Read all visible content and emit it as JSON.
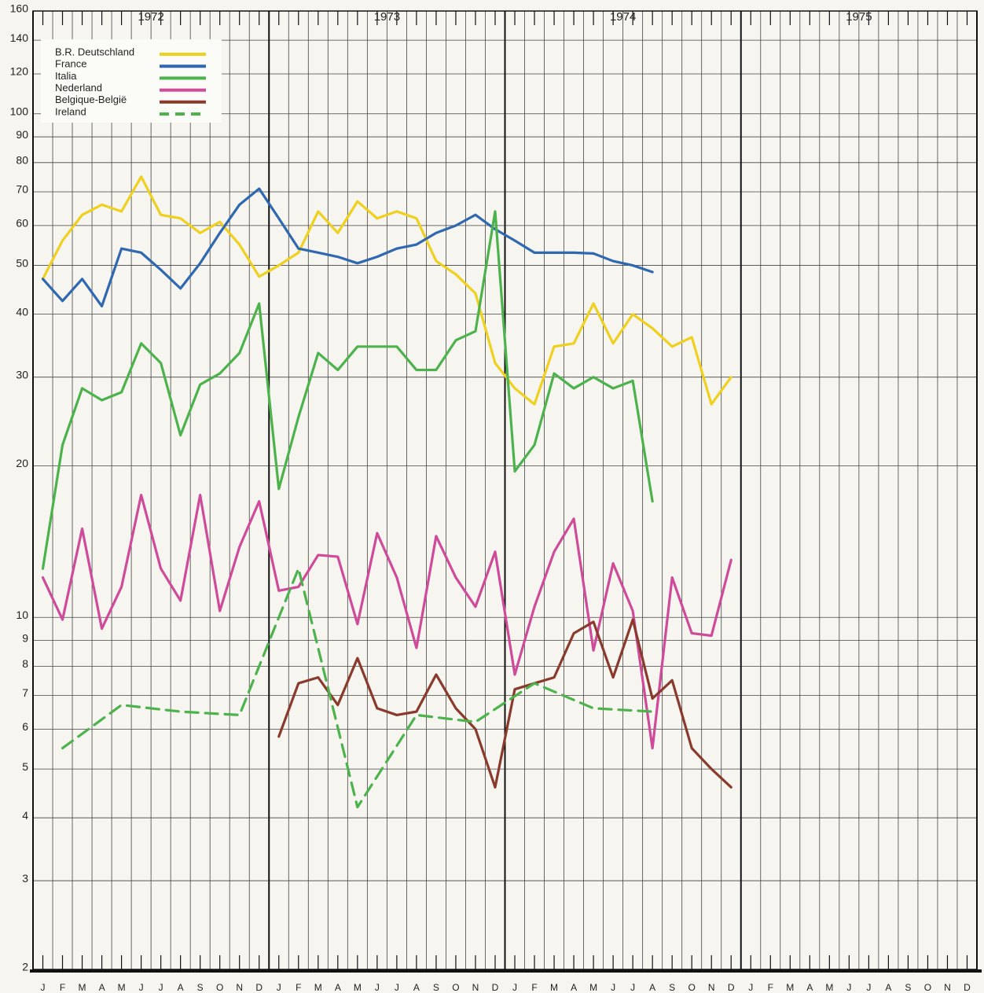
{
  "chart_data": {
    "type": "line",
    "log_scale": true,
    "grid": true,
    "legend_position": "upper left",
    "years": [
      "1972",
      "1973",
      "1974",
      "1975"
    ],
    "categories": [
      "J",
      "F",
      "M",
      "A",
      "M",
      "J",
      "J",
      "A",
      "S",
      "O",
      "N",
      "D",
      "J",
      "F",
      "M",
      "A",
      "M",
      "J",
      "J",
      "A",
      "S",
      "O",
      "N",
      "D",
      "J",
      "F",
      "M",
      "A",
      "M",
      "J",
      "J",
      "A",
      "S",
      "O",
      "N",
      "D",
      "J",
      "F",
      "M",
      "A",
      "M",
      "J",
      "J",
      "A",
      "S",
      "O",
      "N",
      "D"
    ],
    "ylim": [
      2,
      160
    ],
    "yticks": [
      2,
      3,
      4,
      5,
      6,
      7,
      8,
      9,
      10,
      20,
      30,
      40,
      50,
      60,
      70,
      80,
      90,
      100,
      120,
      140,
      160
    ],
    "series": [
      {
        "name": "B.R. Deutschland",
        "color": "#f0d01e",
        "dash": false,
        "values": [
          47,
          56,
          63,
          66,
          64,
          75,
          63,
          62,
          58,
          61,
          55,
          47.5,
          50,
          53,
          64,
          58,
          67,
          62,
          64,
          62,
          51,
          48,
          44,
          32,
          28.5,
          26.5,
          34.5,
          35,
          42,
          35,
          40,
          37.5,
          34.5,
          36,
          26.5,
          30,
          null,
          null,
          null,
          null,
          null,
          null,
          null,
          null,
          null,
          null,
          null,
          null
        ]
      },
      {
        "name": "France",
        "color": "#2f68b0",
        "dash": false,
        "values": [
          47,
          42.5,
          47,
          41.5,
          54,
          53,
          49,
          45,
          50.5,
          58,
          66,
          71,
          62,
          54,
          53,
          52,
          50.5,
          52,
          54,
          55,
          58,
          60,
          63,
          59,
          56,
          53,
          53,
          53,
          52.8,
          51,
          50,
          48.5,
          null,
          null,
          null,
          null,
          null,
          null,
          null,
          null,
          null,
          null,
          null,
          null,
          null,
          null,
          null,
          null
        ]
      },
      {
        "name": "Italia",
        "color": "#4cb34c",
        "dash": false,
        "values": [
          12.5,
          22,
          28.5,
          27,
          28,
          35,
          32,
          23,
          29,
          30.5,
          33.5,
          42,
          18,
          25,
          33.5,
          31,
          34.5,
          34.5,
          34.5,
          31,
          31,
          35.5,
          37,
          64,
          19.5,
          22,
          30.5,
          28.5,
          30,
          28.5,
          29.5,
          17,
          null,
          null,
          null,
          null,
          null,
          null,
          null,
          null,
          null,
          null,
          null,
          null,
          null,
          null,
          null,
          null
        ]
      },
      {
        "name": "Nederland",
        "color": "#d04a9a",
        "dash": false,
        "values": [
          12,
          9.9,
          15,
          9.5,
          11.5,
          17.5,
          12.5,
          10.8,
          17.5,
          10.3,
          13.8,
          17,
          11.3,
          11.5,
          13.3,
          13.2,
          9.7,
          14.7,
          12,
          8.7,
          14.5,
          12,
          10.5,
          13.5,
          7.7,
          10.5,
          13.5,
          15.7,
          8.6,
          12.8,
          10.3,
          5.5,
          12,
          9.3,
          9.2,
          13,
          null,
          null,
          null,
          null,
          null,
          null,
          null,
          null,
          null,
          null,
          null,
          null
        ]
      },
      {
        "name": "Belgique-België",
        "color": "#8a3a2c",
        "dash": false,
        "values": [
          null,
          null,
          null,
          null,
          null,
          null,
          null,
          null,
          null,
          null,
          null,
          null,
          5.8,
          7.4,
          7.6,
          6.7,
          8.3,
          6.6,
          6.4,
          6.5,
          7.7,
          6.6,
          6,
          4.6,
          7.2,
          7.4,
          7.6,
          9.3,
          9.8,
          7.6,
          9.9,
          6.9,
          7.5,
          5.5,
          5,
          4.6,
          null,
          null,
          null,
          null,
          null,
          null,
          null,
          null,
          null,
          null,
          null,
          null
        ]
      },
      {
        "name": "Ireland",
        "color": "#4cb34c",
        "dash": true,
        "x": [
          1,
          4,
          7,
          10,
          13,
          16,
          19,
          22,
          25,
          28,
          31
        ],
        "values": [
          5.5,
          6.7,
          6.5,
          6.4,
          12.5,
          4.2,
          6.4,
          6.2,
          7.4,
          6.6,
          6.5
        ]
      }
    ]
  }
}
